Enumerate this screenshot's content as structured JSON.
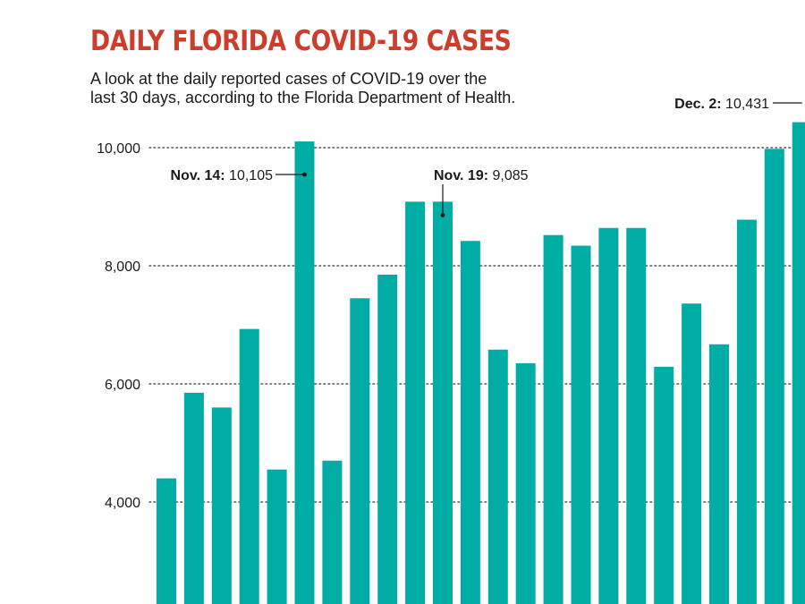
{
  "title": "DAILY FLORIDA COVID-19 CASES",
  "subtitle": [
    "A look at the daily reported cases of COVID-19 over the",
    "last 30 days, according to the Florida Department of Health."
  ],
  "colors": {
    "title": "#cc3d2b",
    "bar": "#00ada4",
    "grid": "#555555",
    "text": "#1a1a1a"
  },
  "chart_data": {
    "type": "bar",
    "values": [
      4400,
      5850,
      5600,
      6930,
      4550,
      10105,
      4700,
      7450,
      7850,
      9085,
      9085,
      8420,
      6580,
      6350,
      8520,
      8340,
      8640,
      8640,
      6290,
      7360,
      6670,
      8780,
      9980,
      10431
    ],
    "yticks": [
      {
        "value": 4000,
        "label": "4,000"
      },
      {
        "value": 6000,
        "label": "6,000"
      },
      {
        "value": 8000,
        "label": "8,000"
      },
      {
        "value": 10000,
        "label": "10,000"
      }
    ],
    "ylim": [
      2400,
      11200
    ],
    "grid": "dotted horizontal",
    "annotations": [
      {
        "bar": 5,
        "label": "Nov. 14:",
        "value": "10,105"
      },
      {
        "bar": 10,
        "label": "Nov. 19:",
        "value": "9,085"
      },
      {
        "bar": 23,
        "label": "Dec. 2:",
        "value": "10,431"
      }
    ]
  }
}
